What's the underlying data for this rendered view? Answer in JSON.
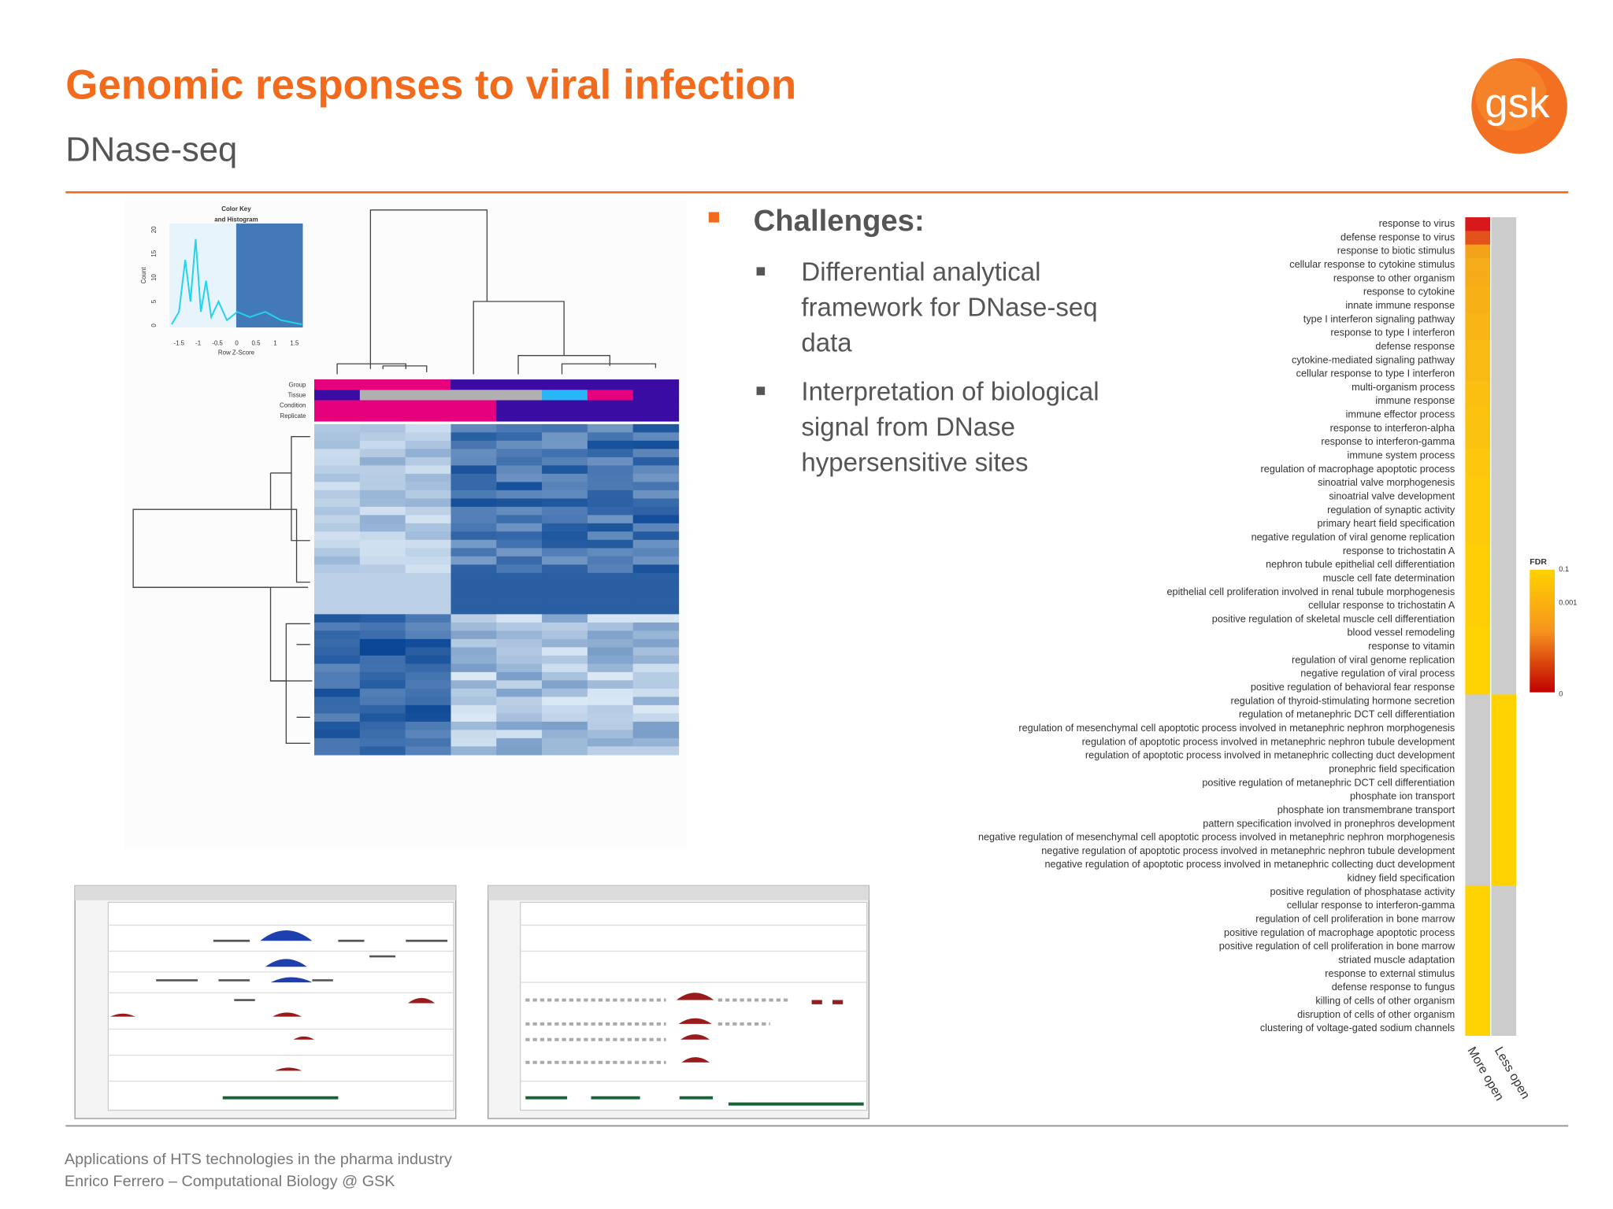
{
  "header": {
    "title": "Genomic responses to viral infection",
    "subtitle": "DNase-seq",
    "logo": "gsk"
  },
  "bullets": {
    "heading": "Challenges:",
    "items": [
      [
        "Differential analytical",
        "framework for DNase-seq",
        "data"
      ],
      [
        "Interpretation of biological",
        "signal from DNase",
        "hypersensitive sites"
      ]
    ]
  },
  "heatmap": {
    "key_title": [
      "Color Key",
      "and Histogram"
    ],
    "y_axis_label": "Count",
    "x_axis_label": "Row Z-Score",
    "x_ticks": [
      -1.5,
      -1,
      -0.5,
      0,
      0.5,
      1,
      1.5
    ],
    "y_ticks": [
      0,
      5,
      10,
      15,
      20
    ],
    "annotation_rows": [
      "Group",
      "Tissue",
      "Condition",
      "Replicate"
    ]
  },
  "enrichment": {
    "terms": [
      "response to virus",
      "defense response to virus",
      "response to biotic stimulus",
      "cellular response to cytokine stimulus",
      "response to other organism",
      "response to cytokine",
      "innate immune response",
      "type I interferon signaling pathway",
      "response to type I interferon",
      "defense response",
      "cytokine-mediated signaling pathway",
      "cellular response to type I interferon",
      "multi-organism process",
      "immune response",
      "immune effector process",
      "response to interferon-alpha",
      "response to interferon-gamma",
      "immune system process",
      "regulation of macrophage apoptotic process",
      "sinoatrial valve morphogenesis",
      "sinoatrial valve development",
      "regulation of synaptic activity",
      "primary heart field specification",
      "negative regulation of viral genome replication",
      "response to trichostatin A",
      "nephron tubule epithelial cell differentiation",
      "muscle cell fate determination",
      "epithelial cell proliferation involved in renal tubule morphogenesis",
      "cellular response to trichostatin A",
      "positive regulation of skeletal muscle cell differentiation",
      "blood vessel remodeling",
      "response to vitamin",
      "regulation of viral genome replication",
      "negative regulation of viral process",
      "positive regulation of behavioral fear response",
      "regulation of thyroid-stimulating hormone secretion",
      "regulation of metanephric DCT cell differentiation",
      "regulation of mesenchymal cell apoptotic process involved in metanephric nephron morphogenesis",
      "regulation of apoptotic process involved in metanephric nephron tubule development",
      "regulation of apoptotic process involved in metanephric collecting duct development",
      "pronephric field specification",
      "positive regulation of metanephric DCT cell differentiation",
      "phosphate ion transport",
      "phosphate ion transmembrane transport",
      "pattern specification involved in pronephros development",
      "negative regulation of mesenchymal cell apoptotic process involved in metanephric nephron morphogenesis",
      "negative regulation of apoptotic process involved in metanephric nephron tubule development",
      "negative regulation of apoptotic process involved in metanephric collecting duct development",
      "kidney field specification",
      "positive regulation of phosphatase activity",
      "cellular response to interferon-gamma",
      "regulation of cell proliferation in bone marrow",
      "positive regulation of macrophage apoptotic process",
      "positive regulation of cell proliferation in bone marrow",
      "striated muscle adaptation",
      "response to external stimulus",
      "defense response to fungus",
      "killing of cells of other organism",
      "disruption of cells of other organism",
      "clustering of voltage-gated sodium channels"
    ],
    "columns": [
      "More open",
      "Less open"
    ],
    "more_open_colors": [
      "#d7191c",
      "#e4521b",
      "#f4a21a",
      "#f6ab18",
      "#f6ab18",
      "#f7b016",
      "#f7b016",
      "#f8b515",
      "#f8b515",
      "#f9ba13",
      "#f9ba13",
      "#f9ba13",
      "#fabf11",
      "#fabf11",
      "#fbc30f",
      "#fbc30f",
      "#fbc30f",
      "#fcc70c",
      "#fcc70c",
      "#fdcb09",
      "#fdcb09",
      "#fdcb09",
      "#fdcb09",
      "#fdcb09",
      "#fecf05",
      "#fecf05",
      "#fecf05",
      "#fecf05",
      "#fecf05",
      "#fecf05",
      "#ffd200",
      "#ffd200",
      "#ffd200",
      "#ffd200",
      "#ffd200",
      "#cccccc",
      "#cccccc",
      "#cccccc",
      "#cccccc",
      "#cccccc",
      "#cccccc",
      "#cccccc",
      "#cccccc",
      "#cccccc",
      "#cccccc",
      "#cccccc",
      "#cccccc",
      "#cccccc",
      "#cccccc",
      "#ffd200",
      "#ffd200",
      "#ffd200",
      "#ffd200",
      "#ffd200",
      "#ffd200",
      "#ffd200",
      "#ffd200",
      "#ffd200",
      "#ffd200",
      "#ffd200"
    ],
    "less_open_colors": [
      "#cccccc",
      "#cccccc",
      "#cccccc",
      "#cccccc",
      "#cccccc",
      "#cccccc",
      "#cccccc",
      "#cccccc",
      "#cccccc",
      "#cccccc",
      "#cccccc",
      "#cccccc",
      "#cccccc",
      "#cccccc",
      "#cccccc",
      "#cccccc",
      "#cccccc",
      "#cccccc",
      "#cccccc",
      "#cccccc",
      "#cccccc",
      "#cccccc",
      "#cccccc",
      "#cccccc",
      "#cccccc",
      "#cccccc",
      "#cccccc",
      "#cccccc",
      "#cccccc",
      "#cccccc",
      "#cccccc",
      "#cccccc",
      "#cccccc",
      "#cccccc",
      "#cccccc",
      "#ffd200",
      "#ffd200",
      "#ffd200",
      "#ffd200",
      "#ffd200",
      "#ffd200",
      "#ffd200",
      "#ffd200",
      "#ffd200",
      "#ffd200",
      "#ffd200",
      "#ffd200",
      "#ffd200",
      "#ffd200",
      "#cccccc",
      "#cccccc",
      "#cccccc",
      "#cccccc",
      "#cccccc",
      "#cccccc",
      "#cccccc",
      "#cccccc",
      "#cccccc",
      "#cccccc",
      "#cccccc"
    ],
    "legend_title": "FDR",
    "legend_ticks": [
      0.1,
      0.001,
      0
    ]
  },
  "footer": [
    "Applications  of HTS technologies in the pharma industry",
    "Enrico Ferrero – Computational Biology @ GSK"
  ]
}
